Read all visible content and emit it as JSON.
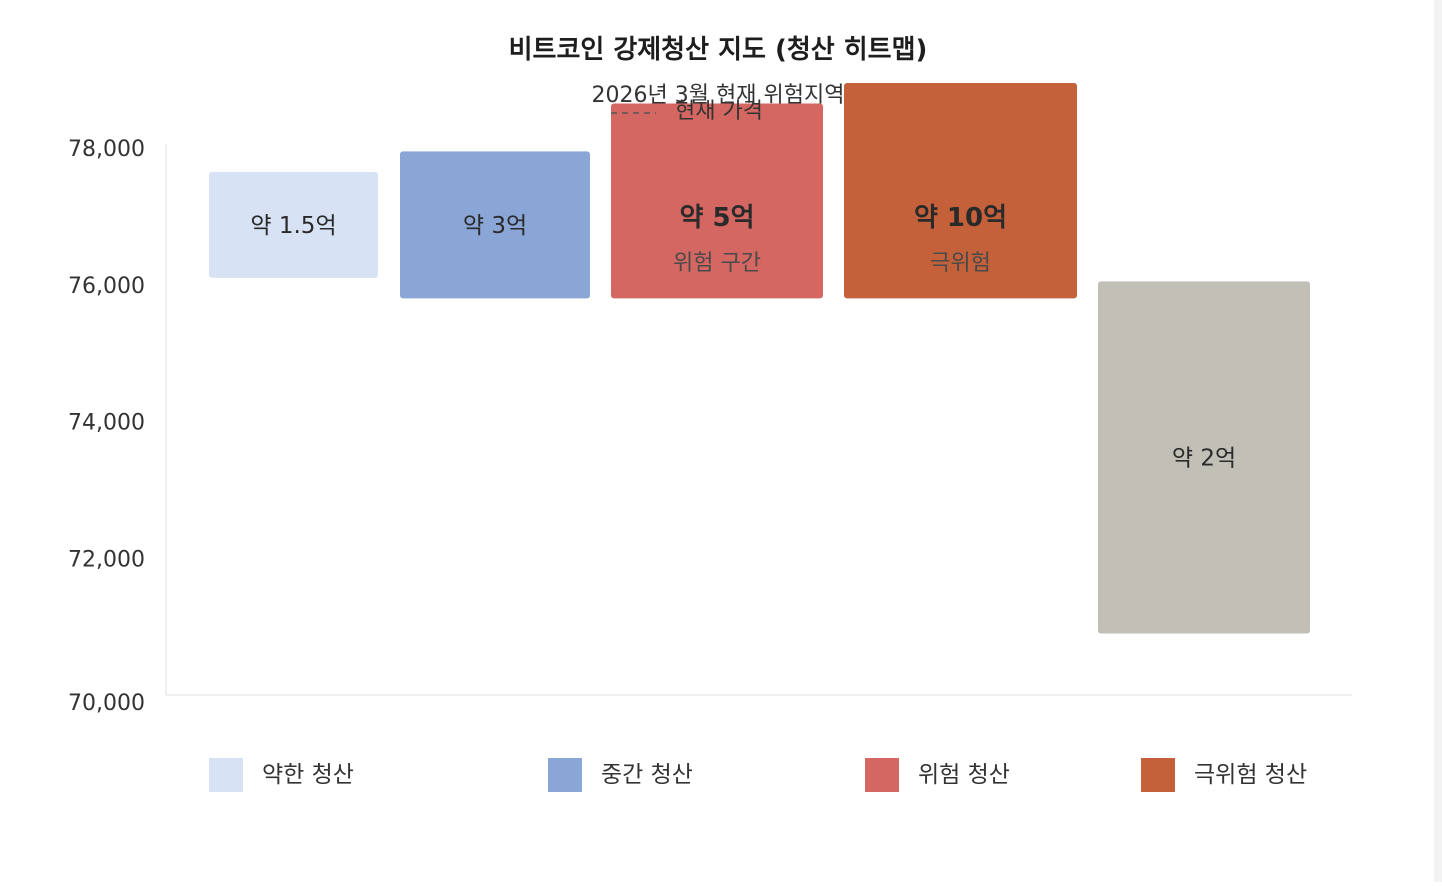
{
  "chart_data": {
    "type": "heatmap",
    "title": "비트코인 강제청산 지도 (청산 히트맵)",
    "subtitle": "2026년 3월 현재 위험지역",
    "current_price_label": "현재 가격",
    "ylim": [
      70000,
      78000
    ],
    "yticks": [
      {
        "value": 78000,
        "label": "78,000"
      },
      {
        "value": 76000,
        "label": "76,000"
      },
      {
        "value": 74000,
        "label": "74,000"
      },
      {
        "value": 72000,
        "label": "72,000"
      },
      {
        "value": 70000,
        "label": "70,000"
      }
    ],
    "colors": {
      "weak": "#d7e2f4",
      "medium": "#8aa6d6",
      "danger": "#d46761",
      "extreme": "#c4613a",
      "other": "#c2bfb7"
    },
    "zones": [
      {
        "category": "weak",
        "low": 76100,
        "high": 77650,
        "label": "약 1.5억",
        "sublabel": ""
      },
      {
        "category": "medium",
        "low": 75800,
        "high": 77950,
        "label": "약 3억",
        "sublabel": ""
      },
      {
        "category": "danger",
        "low": 75800,
        "high": 78650,
        "label": "약 5억",
        "sublabel": "위험 구간"
      },
      {
        "category": "extreme",
        "low": 75800,
        "high": 78950,
        "label": "약 10억",
        "sublabel": "극위험"
      },
      {
        "category": "other",
        "low": 70900,
        "high": 76050,
        "label": "약 2억",
        "sublabel": ""
      }
    ],
    "legend": {
      "placement": "bottom",
      "items": [
        {
          "label": "약한 청산",
          "color": "#d7e2f4"
        },
        {
          "label": "중간 청산",
          "color": "#8aa6d6"
        },
        {
          "label": "위험 청산",
          "color": "#d46761"
        },
        {
          "label": "극위험 청산",
          "color": "#c4613a"
        }
      ]
    }
  }
}
